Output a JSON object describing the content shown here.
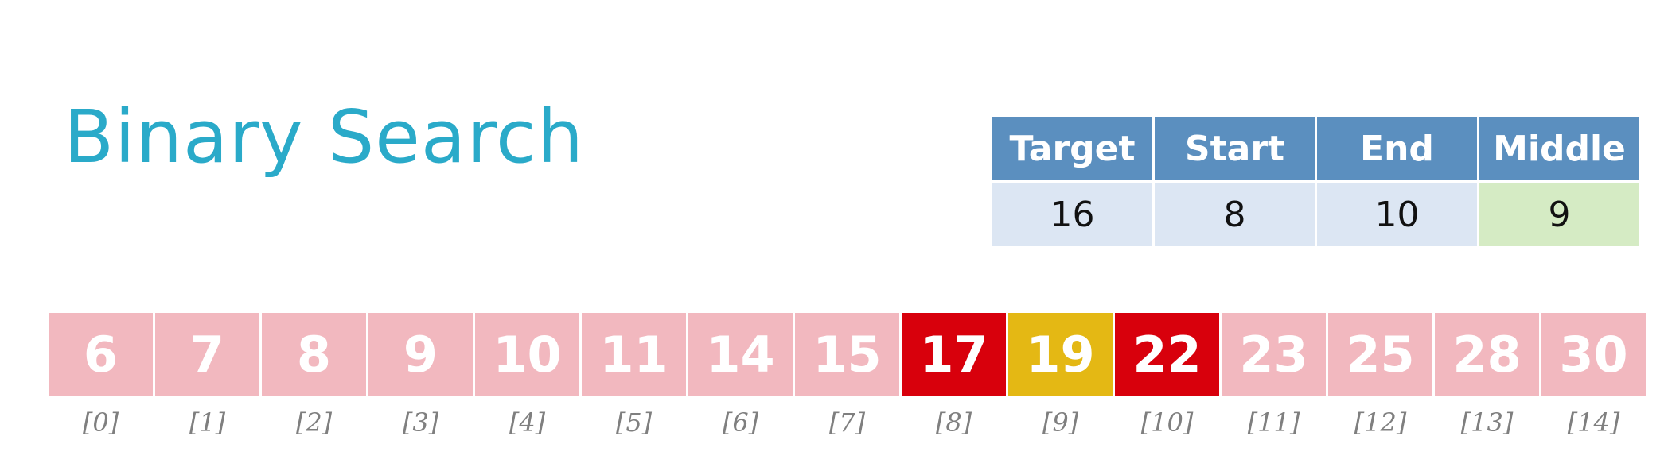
{
  "title": "Binary Search",
  "state": {
    "headers": {
      "target": "Target",
      "start": "Start",
      "end": "End",
      "middle": "Middle"
    },
    "values": {
      "target": "16",
      "start": "8",
      "end": "10",
      "middle": "9"
    }
  },
  "array": {
    "cells": [
      {
        "value": "6",
        "index": "[0]"
      },
      {
        "value": "7",
        "index": "[1]"
      },
      {
        "value": "8",
        "index": "[2]"
      },
      {
        "value": "9",
        "index": "[3]"
      },
      {
        "value": "10",
        "index": "[4]"
      },
      {
        "value": "11",
        "index": "[5]"
      },
      {
        "value": "14",
        "index": "[6]"
      },
      {
        "value": "15",
        "index": "[7]"
      },
      {
        "value": "17",
        "index": "[8]"
      },
      {
        "value": "19",
        "index": "[9]"
      },
      {
        "value": "22",
        "index": "[10]"
      },
      {
        "value": "23",
        "index": "[11]"
      },
      {
        "value": "25",
        "index": "[12]"
      },
      {
        "value": "28",
        "index": "[13]"
      },
      {
        "value": "30",
        "index": "[14]"
      }
    ]
  },
  "colors": {
    "title": "#2aaac9",
    "header_bg": "#5b8fbf",
    "value_bg": "#dce6f3",
    "middle_value_bg": "#d5ebc4",
    "cell_default": "#f2b8bf",
    "cell_start_end": "#d8000c",
    "cell_middle": "#e4b814"
  }
}
